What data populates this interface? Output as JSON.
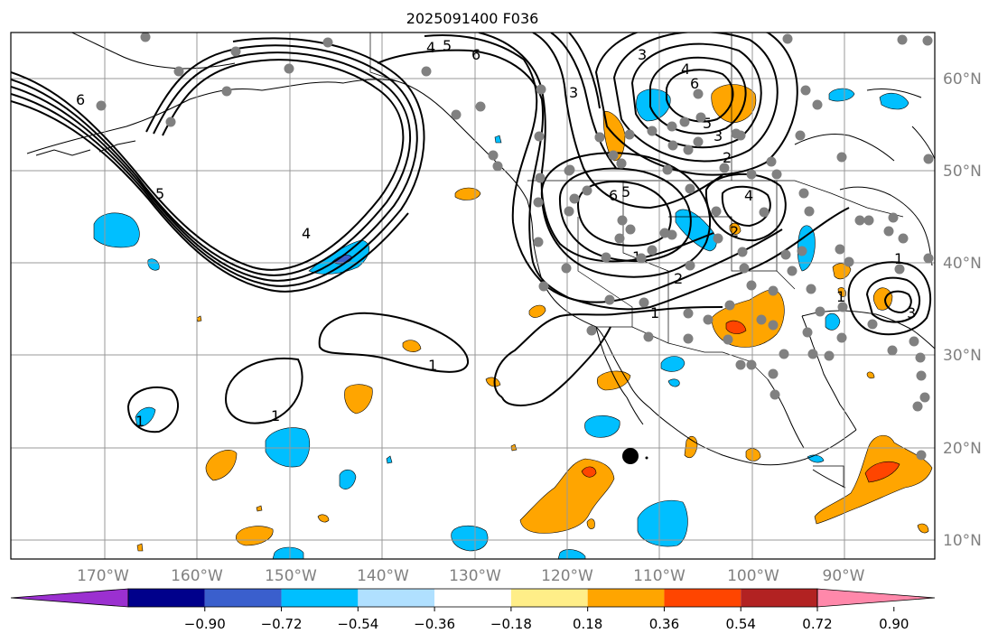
{
  "title": "2025091400 F036",
  "lon_labels": [
    "170°W",
    "160°W",
    "150°W",
    "140°W",
    "130°W",
    "120°W",
    "110°W",
    "100°W",
    "90°W"
  ],
  "lat_labels": [
    "60°N",
    "50°N",
    "40°N",
    "30°N",
    "20°N",
    "10°N"
  ],
  "colorbar": {
    "ticks": [
      "−0.90",
      "−0.72",
      "−0.54",
      "−0.36",
      "−0.18",
      "0.18",
      "0.36",
      "0.54",
      "0.72",
      "0.90"
    ],
    "colors": [
      "#9b30d0",
      "#00008b",
      "#3a5fcd",
      "#00bfff",
      "#b0e0ff",
      "#ffffff",
      "#ffee88",
      "#ffa500",
      "#ff4500",
      "#b22222",
      "#ff88aa"
    ]
  },
  "contour_labels": [
    "6",
    "5",
    "4",
    "1",
    "1",
    "1",
    "1",
    "6",
    "5",
    "4",
    "3",
    "2",
    "1",
    "6",
    "5",
    "3",
    "2",
    "4",
    "6",
    "5",
    "3",
    "4",
    "2",
    "1",
    "1",
    "3"
  ],
  "colors": {
    "contour": "#000000",
    "grid": "#999999",
    "station": "#808080",
    "storm": "#000000",
    "label": "#808080"
  }
}
